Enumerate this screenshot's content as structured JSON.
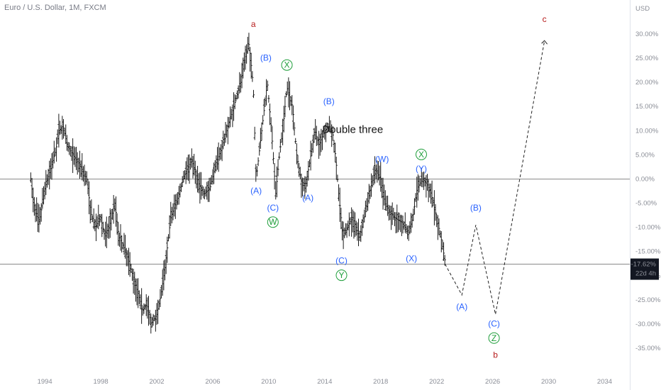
{
  "header": {
    "title": "Euro / U.S. Dollar, 1M, FXCM"
  },
  "colors": {
    "background": "#ffffff",
    "candle": "#1a1a1a",
    "grid_line": "#7a7a7a",
    "wave_blue": "#2962ff",
    "wave_green": "#1e9e3a",
    "wave_red": "#b71c1c",
    "axis_text": "#8a8d96",
    "price_label_bg": "#131722",
    "price_label_text": "#ffffff"
  },
  "chart_data": {
    "type": "line",
    "title": "Euro / U.S. Dollar, 1M, FXCM",
    "y_unit": "USD",
    "y_scale": "percent",
    "ylim": [
      -37,
      31
    ],
    "xlim": [
      1990.8,
      2035.8
    ],
    "x_ticks": [
      "1994",
      "1998",
      "2002",
      "2006",
      "2010",
      "2014",
      "2018",
      "2022",
      "2026",
      "2030",
      "2034"
    ],
    "y_ticks": [
      "30.00%",
      "25.00%",
      "20.00%",
      "15.00%",
      "10.00%",
      "5.00%",
      "0.00%",
      "-5.00%",
      "-10.00%",
      "-15.00%",
      "-20.00%",
      "-25.00%",
      "-30.00%",
      "-35.00%"
    ],
    "series": [
      {
        "type": "price",
        "x": [
          1993.0,
          1993.2,
          1993.6,
          1994.0,
          1994.4,
          1994.8,
          1995.0,
          1995.3,
          1995.6,
          1996.0,
          1996.5,
          1997.0,
          1997.3,
          1997.6,
          1998.0,
          1998.3,
          1998.6,
          1999.0,
          1999.3,
          1999.8,
          2000.3,
          2000.8,
          2001.0,
          2001.3,
          2001.6,
          2002.0,
          2002.3,
          2002.6,
          2003.0,
          2003.5,
          2004.0,
          2004.5,
          2005.0,
          2005.4,
          2005.8,
          2006.2,
          2006.6,
          2007.0,
          2007.5,
          2008.0,
          2008.3,
          2008.6,
          2008.9,
          2009.1,
          2009.3,
          2009.7,
          2009.9,
          2010.2,
          2010.5,
          2010.8,
          2011.0,
          2011.3,
          2011.7,
          2012.0,
          2012.3,
          2012.6,
          2012.9,
          2013.3,
          2013.6,
          2014.0,
          2014.3,
          2014.6,
          2014.8,
          2015.0,
          2015.3,
          2015.6,
          2016.0,
          2016.5,
          2016.9,
          2017.2,
          2017.6,
          2018.0,
          2018.3,
          2018.7,
          2019.0,
          2019.5,
          2020.0,
          2020.3,
          2020.6,
          2021.0,
          2021.3,
          2021.6,
          2022.0,
          2022.3,
          2022.6
        ],
        "y": [
          0,
          -5,
          -9,
          -2,
          2,
          6,
          10,
          11,
          7,
          5,
          3,
          0,
          -7,
          -10,
          -8,
          -12,
          -10,
          -5,
          -12,
          -15,
          -20,
          -25,
          -27,
          -26,
          -30,
          -28,
          -24,
          -18,
          -8,
          -4,
          1,
          4,
          -1,
          -3,
          -2,
          3,
          6,
          10,
          15,
          20,
          25,
          28,
          19,
          0,
          5,
          15,
          20,
          10,
          -3,
          6,
          10,
          19,
          15,
          5,
          0,
          -2,
          3,
          10,
          7,
          10,
          11,
          9,
          4,
          -3,
          -12,
          -10,
          -8,
          -12,
          -7,
          -3,
          2,
          0,
          -5,
          -7,
          -8,
          -9,
          -11,
          -8,
          -2,
          0,
          -1,
          -3,
          -8,
          -12,
          -17
        ]
      },
      {
        "name": "Projection",
        "type": "dashed",
        "x": [
          2022.6,
          2023.8,
          2024.8,
          2026.2,
          2029.7
        ],
        "y": [
          -17.6,
          -24,
          -9.5,
          -28,
          28.5
        ]
      }
    ],
    "annotations": [
      {
        "text": "a",
        "x": 2008.9,
        "y": 31.5,
        "color": "red"
      },
      {
        "text": "c",
        "x": 2029.7,
        "y": 32.5,
        "color": "red"
      },
      {
        "text": "b",
        "x": 2026.2,
        "y": -37,
        "color": "red"
      },
      {
        "text": "(B)",
        "x": 2009.8,
        "y": 24.5,
        "color": "blue"
      },
      {
        "text": "X",
        "x": 2011.3,
        "y": 23,
        "color": "green",
        "circled": true
      },
      {
        "text": "(A)",
        "x": 2009.1,
        "y": -3,
        "color": "blue"
      },
      {
        "text": "(C)",
        "x": 2010.3,
        "y": -6.5,
        "color": "blue"
      },
      {
        "text": "W",
        "x": 2010.3,
        "y": -9.5,
        "color": "green",
        "circled": true
      },
      {
        "text": "(A)",
        "x": 2012.8,
        "y": -4.5,
        "color": "blue"
      },
      {
        "text": "(B)",
        "x": 2014.3,
        "y": 15.5,
        "color": "blue"
      },
      {
        "text": "(C)",
        "x": 2015.2,
        "y": -17.5,
        "color": "blue"
      },
      {
        "text": "Y",
        "x": 2015.2,
        "y": -20.5,
        "color": "green",
        "circled": true
      },
      {
        "text": "(W)",
        "x": 2018.1,
        "y": 3.5,
        "color": "blue"
      },
      {
        "text": "X",
        "x": 2020.9,
        "y": 4.5,
        "color": "green",
        "circled": true
      },
      {
        "text": "(Y)",
        "x": 2020.9,
        "y": 1.5,
        "color": "blue"
      },
      {
        "text": "(X)",
        "x": 2020.2,
        "y": -17,
        "color": "blue"
      },
      {
        "text": "(B)",
        "x": 2024.8,
        "y": -6.5,
        "color": "blue"
      },
      {
        "text": "(A)",
        "x": 2023.8,
        "y": -27,
        "color": "blue"
      },
      {
        "text": "(C)",
        "x": 2026.1,
        "y": -30.5,
        "color": "blue"
      },
      {
        "text": "Z",
        "x": 2026.1,
        "y": -33.5,
        "color": "green",
        "circled": true
      },
      {
        "text": "Double three",
        "x": 2016.0,
        "y": 9.5,
        "color": "black"
      }
    ],
    "reference_lines": [
      0,
      -17.62
    ],
    "last_value_label": "-17.62%",
    "countdown_label": "22d 4h",
    "grid": false,
    "legend": "none"
  }
}
